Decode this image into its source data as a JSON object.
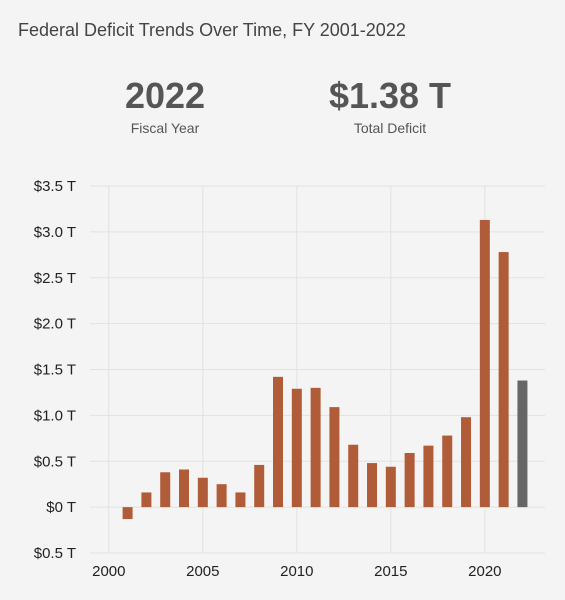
{
  "title": "Federal Deficit Trends Over Time, FY 2001-2022",
  "stats": {
    "year_value": "2022",
    "year_label": "Fiscal Year",
    "deficit_value": "$1.38 T",
    "deficit_label": "Total Deficit"
  },
  "colors": {
    "bar": "#b05c38",
    "highlight": "#666666",
    "grid": "#e2e2e2",
    "background": "#f4f4f4"
  },
  "chart_data": {
    "type": "bar",
    "title": "Federal Deficit Trends Over Time, FY 2001-2022",
    "xlabel": "",
    "ylabel": "",
    "x": [
      2001,
      2002,
      2003,
      2004,
      2005,
      2006,
      2007,
      2008,
      2009,
      2010,
      2011,
      2012,
      2013,
      2014,
      2015,
      2016,
      2017,
      2018,
      2019,
      2020,
      2021,
      2022
    ],
    "values": [
      -0.13,
      0.16,
      0.38,
      0.41,
      0.32,
      0.25,
      0.16,
      0.46,
      1.42,
      1.29,
      1.3,
      1.09,
      0.68,
      0.48,
      0.44,
      0.59,
      0.67,
      0.78,
      0.98,
      3.13,
      2.78,
      1.38
    ],
    "highlight_x": 2022,
    "xlim": [
      1999,
      2023.2
    ],
    "ylim": [
      -0.5,
      3.5
    ],
    "x_ticks": [
      2000,
      2005,
      2010,
      2015,
      2020
    ],
    "y_ticks": [
      -0.5,
      0,
      0.5,
      1.0,
      1.5,
      2.0,
      2.5,
      3.0,
      3.5
    ],
    "y_tick_labels": [
      "$0.5 T",
      "$0 T",
      "$0.5 T",
      "$1.0 T",
      "$1.5 T",
      "$2.0 T",
      "$2.5 T",
      "$3.0 T",
      "$3.5 T"
    ],
    "grid": true,
    "legend": "none"
  }
}
